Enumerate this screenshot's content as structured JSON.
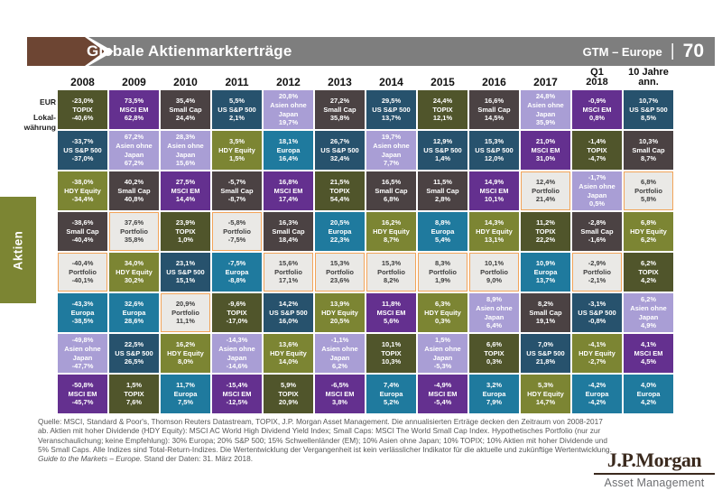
{
  "header": {
    "title": "Globale Aktienmarkterträge",
    "gtm_label": "GTM – Europe",
    "divider": "|",
    "page_number": "70"
  },
  "axis": {
    "eur": "EUR",
    "local_line1": "Lokal-",
    "local_line2": "währung"
  },
  "side_tab": {
    "label": "Aktien"
  },
  "chart_data": {
    "type": "table",
    "title": "Globale Aktienmarkterträge",
    "cell_line_meaning": [
      "EUR-Ertrag",
      "Anlageklasse",
      "Ertrag in Lokalwährung"
    ],
    "asset_colors": {
      "TOPIX": {
        "bg": "#50552b",
        "fg": "#ffffff"
      },
      "US S&P 500": {
        "bg": "#27526d",
        "fg": "#ffffff"
      },
      "HDY Equity": {
        "bg": "#7c8533",
        "fg": "#ffffff"
      },
      "Small Cap": {
        "bg": "#4b4243",
        "fg": "#ffffff"
      },
      "Portfolio": {
        "bg": "#eae9e6",
        "fg": "#3f3f3f",
        "border": "#f2a459"
      },
      "Europa": {
        "bg": "#1f7a9e",
        "fg": "#ffffff"
      },
      "Asien ohne Japan": {
        "bg": "#a99ed5",
        "fg": "#ffffff"
      },
      "MSCI EM": {
        "bg": "#64308f",
        "fg": "#ffffff"
      }
    },
    "columns": [
      {
        "label": "2008",
        "cells": [
          {
            "eur": "-23,0%",
            "asset": "TOPIX",
            "lokal": "-40,6%"
          },
          {
            "eur": "-33,7%",
            "asset": "US S&P 500",
            "lokal": "-37,0%"
          },
          {
            "eur": "-38,0%",
            "asset": "HDY Equity",
            "lokal": "-34,4%"
          },
          {
            "eur": "-38,6%",
            "asset": "Small Cap",
            "lokal": "-40,4%"
          },
          {
            "eur": "-40,4%",
            "asset": "Portfolio",
            "lokal": "-40,1%"
          },
          {
            "eur": "-43,3%",
            "asset": "Europa",
            "lokal": "-38,5%"
          },
          {
            "eur": "-49,8%",
            "asset": "Asien ohne Japan",
            "lokal": "-47,7%"
          },
          {
            "eur": "-50,8%",
            "asset": "MSCI EM",
            "lokal": "-45,7%"
          }
        ]
      },
      {
        "label": "2009",
        "cells": [
          {
            "eur": "73,5%",
            "asset": "MSCI EM",
            "lokal": "62,8%"
          },
          {
            "eur": "67,2%",
            "asset": "Asien ohne Japan",
            "lokal": "67,2%"
          },
          {
            "eur": "40,2%",
            "asset": "Small Cap",
            "lokal": "40,8%"
          },
          {
            "eur": "37,6%",
            "asset": "Portfolio",
            "lokal": "35,8%"
          },
          {
            "eur": "34,0%",
            "asset": "HDY Equity",
            "lokal": "30,2%"
          },
          {
            "eur": "32,6%",
            "asset": "Europa",
            "lokal": "28,6%"
          },
          {
            "eur": "22,5%",
            "asset": "US S&P 500",
            "lokal": "26,5%"
          },
          {
            "eur": "1,5%",
            "asset": "TOPIX",
            "lokal": "7,6%"
          }
        ]
      },
      {
        "label": "2010",
        "cells": [
          {
            "eur": "35,4%",
            "asset": "Small Cap",
            "lokal": "24,4%"
          },
          {
            "eur": "28,3%",
            "asset": "Asien ohne Japan",
            "lokal": "15,6%"
          },
          {
            "eur": "27,5%",
            "asset": "MSCI EM",
            "lokal": "14,4%"
          },
          {
            "eur": "23,9%",
            "asset": "TOPIX",
            "lokal": "1,0%"
          },
          {
            "eur": "23,1%",
            "asset": "US S&P 500",
            "lokal": "15,1%"
          },
          {
            "eur": "20,9%",
            "asset": "Portfolio",
            "lokal": "11,1%"
          },
          {
            "eur": "16,2%",
            "asset": "HDY Equity",
            "lokal": "8,0%"
          },
          {
            "eur": "11,7%",
            "asset": "Europa",
            "lokal": "7,5%"
          }
        ]
      },
      {
        "label": "2011",
        "cells": [
          {
            "eur": "5,5%",
            "asset": "US S&P 500",
            "lokal": "2,1%"
          },
          {
            "eur": "3,5%",
            "asset": "HDY Equity",
            "lokal": "1,5%"
          },
          {
            "eur": "-5,7%",
            "asset": "Small Cap",
            "lokal": "-8,7%"
          },
          {
            "eur": "-5,8%",
            "asset": "Portfolio",
            "lokal": "-7,5%"
          },
          {
            "eur": "-7,5%",
            "asset": "Europa",
            "lokal": "-8,8%"
          },
          {
            "eur": "-9,6%",
            "asset": "TOPIX",
            "lokal": "-17,0%"
          },
          {
            "eur": "-14,3%",
            "asset": "Asien ohne Japan",
            "lokal": "-14,6%"
          },
          {
            "eur": "-15,4%",
            "asset": "MSCI EM",
            "lokal": "-12,5%"
          }
        ]
      },
      {
        "label": "2012",
        "cells": [
          {
            "eur": "20,8%",
            "asset": "Asien ohne Japan",
            "lokal": "19,7%"
          },
          {
            "eur": "18,1%",
            "asset": "Europa",
            "lokal": "16,4%"
          },
          {
            "eur": "16,8%",
            "asset": "MSCI EM",
            "lokal": "17,4%"
          },
          {
            "eur": "16,3%",
            "asset": "Small Cap",
            "lokal": "18,4%"
          },
          {
            "eur": "15,6%",
            "asset": "Portfolio",
            "lokal": "17,1%"
          },
          {
            "eur": "14,2%",
            "asset": "US S&P 500",
            "lokal": "16,0%"
          },
          {
            "eur": "13,6%",
            "asset": "HDY Equity",
            "lokal": "14,0%"
          },
          {
            "eur": "5,9%",
            "asset": "TOPIX",
            "lokal": "20,9%"
          }
        ]
      },
      {
        "label": "2013",
        "cells": [
          {
            "eur": "27,2%",
            "asset": "Small Cap",
            "lokal": "35,8%"
          },
          {
            "eur": "26,7%",
            "asset": "US S&P 500",
            "lokal": "32,4%"
          },
          {
            "eur": "21,5%",
            "asset": "TOPIX",
            "lokal": "54,4%"
          },
          {
            "eur": "20,5%",
            "asset": "Europa",
            "lokal": "22,3%"
          },
          {
            "eur": "15,3%",
            "asset": "Portfolio",
            "lokal": "23,6%"
          },
          {
            "eur": "13,9%",
            "asset": "HDY Equity",
            "lokal": "20,5%"
          },
          {
            "eur": "-1,1%",
            "asset": "Asien ohne Japan",
            "lokal": "6,2%"
          },
          {
            "eur": "-6,5%",
            "asset": "MSCI EM",
            "lokal": "3,8%"
          }
        ]
      },
      {
        "label": "2014",
        "cells": [
          {
            "eur": "29,5%",
            "asset": "US S&P 500",
            "lokal": "13,7%"
          },
          {
            "eur": "19,7%",
            "asset": "Asien ohne Japan",
            "lokal": "7,7%"
          },
          {
            "eur": "16,5%",
            "asset": "Small Cap",
            "lokal": "6,8%"
          },
          {
            "eur": "16,2%",
            "asset": "HDY Equity",
            "lokal": "8,7%"
          },
          {
            "eur": "15,3%",
            "asset": "Portfolio",
            "lokal": "8,2%"
          },
          {
            "eur": "11,8%",
            "asset": "MSCI EM",
            "lokal": "5,6%"
          },
          {
            "eur": "10,1%",
            "asset": "TOPIX",
            "lokal": "10,3%"
          },
          {
            "eur": "7,4%",
            "asset": "Europa",
            "lokal": "5,2%"
          }
        ]
      },
      {
        "label": "2015",
        "cells": [
          {
            "eur": "24,4%",
            "asset": "TOPIX",
            "lokal": "12,1%"
          },
          {
            "eur": "12,9%",
            "asset": "US S&P 500",
            "lokal": "1,4%"
          },
          {
            "eur": "11,5%",
            "asset": "Small Cap",
            "lokal": "2,8%"
          },
          {
            "eur": "8,8%",
            "asset": "Europa",
            "lokal": "5,4%"
          },
          {
            "eur": "8,3%",
            "asset": "Portfolio",
            "lokal": "1,9%"
          },
          {
            "eur": "6,3%",
            "asset": "HDY Equity",
            "lokal": "0,3%"
          },
          {
            "eur": "1,5%",
            "asset": "Asien ohne Japan",
            "lokal": "-5,3%"
          },
          {
            "eur": "-4,9%",
            "asset": "MSCI EM",
            "lokal": "-5,4%"
          }
        ]
      },
      {
        "label": "2016",
        "cells": [
          {
            "eur": "16,6%",
            "asset": "Small Cap",
            "lokal": "14,5%"
          },
          {
            "eur": "15,3%",
            "asset": "US S&P 500",
            "lokal": "12,0%"
          },
          {
            "eur": "14,9%",
            "asset": "MSCI EM",
            "lokal": "10,1%"
          },
          {
            "eur": "14,3%",
            "asset": "HDY Equity",
            "lokal": "13,1%"
          },
          {
            "eur": "10,1%",
            "asset": "Portfolio",
            "lokal": "9,0%"
          },
          {
            "eur": "8,9%",
            "asset": "Asien ohne Japan",
            "lokal": "6,4%"
          },
          {
            "eur": "6,6%",
            "asset": "TOPIX",
            "lokal": "0,3%"
          },
          {
            "eur": "3,2%",
            "asset": "Europa",
            "lokal": "7,9%"
          }
        ]
      },
      {
        "label": "2017",
        "cells": [
          {
            "eur": "24,8%",
            "asset": "Asien ohne Japan",
            "lokal": "35,9%"
          },
          {
            "eur": "21,0%",
            "asset": "MSCI EM",
            "lokal": "31,0%"
          },
          {
            "eur": "12,4%",
            "asset": "Portfolio",
            "lokal": "21,4%"
          },
          {
            "eur": "11,2%",
            "asset": "TOPIX",
            "lokal": "22,2%"
          },
          {
            "eur": "10,9%",
            "asset": "Europa",
            "lokal": "13,7%"
          },
          {
            "eur": "8,2%",
            "asset": "Small Cap",
            "lokal": "19,1%"
          },
          {
            "eur": "7,0%",
            "asset": "US S&P 500",
            "lokal": "21,8%"
          },
          {
            "eur": "5,3%",
            "asset": "HDY Equity",
            "lokal": "14,7%"
          }
        ]
      },
      {
        "label": "Q1",
        "label2": "2018",
        "cells": [
          {
            "eur": "-0,9%",
            "asset": "MSCI EM",
            "lokal": "0,8%"
          },
          {
            "eur": "-1,4%",
            "asset": "TOPIX",
            "lokal": "-4,7%"
          },
          {
            "eur": "-1,7%",
            "asset": "Asien ohne Japan",
            "lokal": "0,5%"
          },
          {
            "eur": "-2,8%",
            "asset": "Small Cap",
            "lokal": "-1,6%"
          },
          {
            "eur": "-2,9%",
            "asset": "Portfolio",
            "lokal": "-2,1%"
          },
          {
            "eur": "-3,1%",
            "asset": "US S&P 500",
            "lokal": "-0,8%"
          },
          {
            "eur": "-4,1%",
            "asset": "HDY Equity",
            "lokal": "-2,7%"
          },
          {
            "eur": "-4,2%",
            "asset": "Europa",
            "lokal": "-4,2%"
          }
        ]
      },
      {
        "label": "10 Jahre",
        "label2": "ann.",
        "cells": [
          {
            "eur": "10,7%",
            "asset": "US S&P 500",
            "lokal": "8,5%"
          },
          {
            "eur": "10,3%",
            "asset": "Small Cap",
            "lokal": "8,7%"
          },
          {
            "eur": "6,8%",
            "asset": "Portfolio",
            "lokal": "5,8%"
          },
          {
            "eur": "6,8%",
            "asset": "HDY Equity",
            "lokal": "6,2%"
          },
          {
            "eur": "6,2%",
            "asset": "TOPIX",
            "lokal": "4,2%"
          },
          {
            "eur": "6,2%",
            "asset": "Asien ohne Japan",
            "lokal": "4,9%"
          },
          {
            "eur": "4,1%",
            "asset": "MSCI EM",
            "lokal": "4,5%"
          },
          {
            "eur": "4,0%",
            "asset": "Europa",
            "lokal": "4,2%"
          }
        ]
      }
    ]
  },
  "footer": {
    "text_main": "Quelle: MSCI, Standard & Poor's, Thomson Reuters Datastream, TOPIX, J.P. Morgan Asset Management. Die annualisierten Erträge decken den Zeitraum von 2008-2017 ab. Aktien mit hoher Dividende (HDY Equity): MSCI AC World High Dividend Yield Index; Small Caps: MSCI The World Small Cap Index. Hypothetisches Portfolio (nur zur Veranschaulichung; keine Empfehlung): 30% Europa; 20% S&P 500; 15% Schwellenländer (EM); 10% Asien ohne Japan; 10% TOPIX; 10% Aktien mit hoher Dividende und 5% Small Caps. Alle Indizes sind Total-Return-Indizes. Die Wertentwicklung der Vergangenheit ist kein verlässlicher Indikator für die aktuelle und zukünftige Wertentwicklung. ",
    "text_italic": "Guide to the Markets – Europe.",
    "text_end": " Stand der Daten: 31. März 2018."
  },
  "logo": {
    "name": "J.P.Morgan",
    "sub": "Asset Management"
  }
}
